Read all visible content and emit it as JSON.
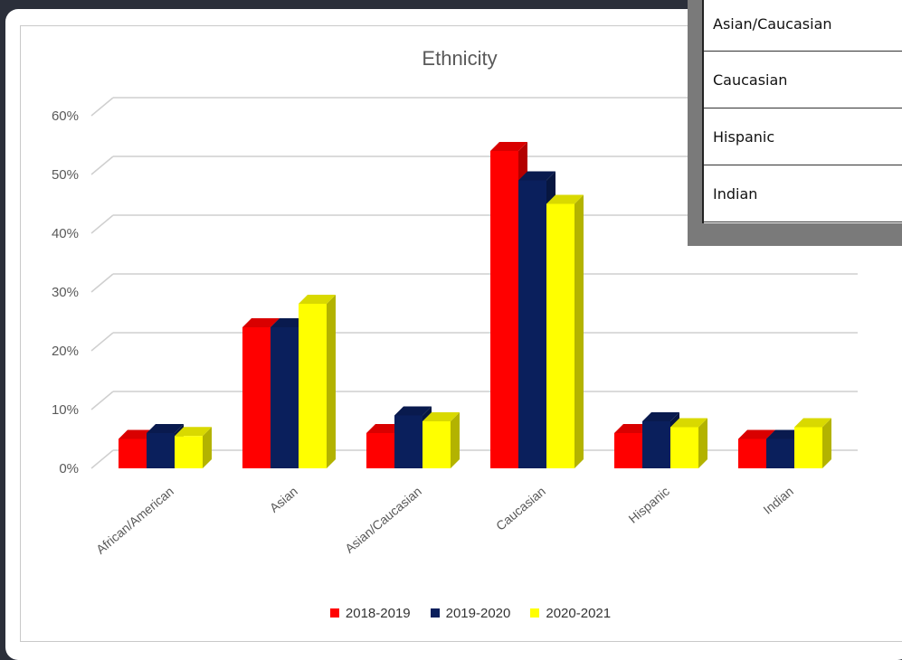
{
  "popup_table": {
    "rows": [
      "Asian/Caucasian",
      "Caucasian",
      "Hispanic",
      "Indian"
    ]
  },
  "chart_data": {
    "type": "bar",
    "title": "Ethnicity",
    "xlabel": "",
    "ylabel": "",
    "ylim": [
      0,
      0.6
    ],
    "yticks": [
      "0%",
      "10%",
      "20%",
      "30%",
      "40%",
      "50%",
      "60%"
    ],
    "categories": [
      "African/American",
      "Asian",
      "Asian/Caucasian",
      "Caucasian",
      "Hispanic",
      "Indian"
    ],
    "series": [
      {
        "name": "2018-2019",
        "color": "#ff0000",
        "values": [
          0.05,
          0.24,
          0.06,
          0.54,
          0.06,
          0.05
        ]
      },
      {
        "name": "2019-2020",
        "color": "#0a1f5c",
        "values": [
          0.06,
          0.24,
          0.09,
          0.49,
          0.08,
          0.05
        ]
      },
      {
        "name": "2020-2021",
        "color": "#ffff00",
        "values": [
          0.055,
          0.28,
          0.08,
          0.45,
          0.07,
          0.07
        ]
      }
    ],
    "grid": true,
    "legend_position": "bottom"
  }
}
